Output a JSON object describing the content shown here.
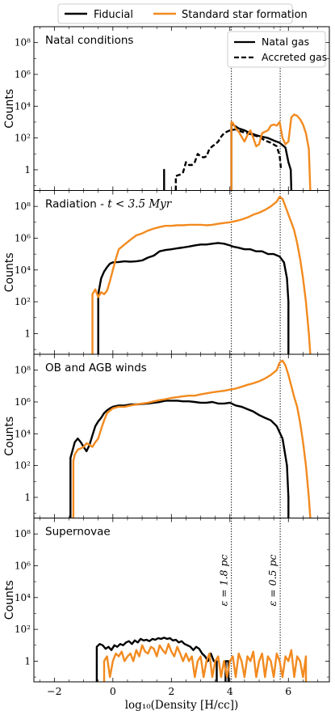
{
  "figure": {
    "legend_top": [
      {
        "label": "Fiducial",
        "color": "#000000",
        "style": "solid"
      },
      {
        "label": "Standard star formation",
        "color": "#f28a1f",
        "style": "solid"
      }
    ],
    "xlabel": "log$_{10}$(Density [H/cc])",
    "xlabel_display": "log₁₀(Density [H/cc])",
    "xticks": [
      "−2",
      "0",
      "2",
      "4",
      "6"
    ],
    "xlim": [
      -2.7,
      7.4
    ],
    "vlines": [
      {
        "x": 4.05,
        "label": "ε = 1.8 pc",
        "style": "dotted"
      },
      {
        "x": 5.72,
        "label": "ε = 0.5 pc",
        "style": "dotted"
      }
    ],
    "colors": {
      "fiducial": "#000000",
      "standard": "#f28a1f"
    }
  },
  "chart_data": [
    {
      "type": "line",
      "panel_title": "Natal conditions",
      "ylabel": "Counts",
      "yscale": "log",
      "yticks": [
        "1",
        "10²",
        "10⁴",
        "10⁶",
        "10⁸"
      ],
      "ylim": [
        0.05,
        1000000000.0
      ],
      "legend": [
        {
          "label": "Natal gas",
          "style": "solid"
        },
        {
          "label": "Accreted gas",
          "style": "dashed"
        }
      ],
      "series": [
        {
          "key": "fiducial",
          "style": "solid",
          "x": [
            1.75,
            1.75,
            1.75
          ],
          "y": [
            0.05,
            1,
            0.05
          ]
        },
        {
          "key": "fiducial",
          "style": "solid",
          "x": [
            4.05,
            4.05,
            4.3,
            4.5,
            4.7,
            4.9,
            5.1,
            5.3,
            5.5,
            5.7,
            5.9,
            6.0,
            6.08,
            6.1,
            6.1
          ],
          "y": [
            0.05,
            800,
            400,
            300,
            200,
            150,
            120,
            100,
            70,
            50,
            25,
            3,
            1,
            0.05,
            0.05
          ]
        },
        {
          "key": "fiducial",
          "style": "dashed",
          "x": [
            2.15,
            2.15,
            2.3,
            2.4,
            2.5,
            2.6,
            2.7,
            2.8,
            2.9,
            3.0,
            3.1,
            3.2,
            3.3,
            3.4,
            3.5,
            3.6,
            3.7,
            3.8,
            3.9,
            4.0,
            4.2,
            4.4,
            4.6,
            4.8,
            5.0,
            5.2,
            5.4,
            5.6,
            5.7,
            5.75
          ],
          "y": [
            0.05,
            0.4,
            0.5,
            0.7,
            3,
            2,
            2,
            3,
            10,
            7,
            6,
            7,
            20,
            30,
            40,
            60,
            120,
            200,
            250,
            300,
            350,
            250,
            200,
            150,
            120,
            70,
            50,
            30,
            8,
            1
          ]
        },
        {
          "key": "standard",
          "style": "solid",
          "x": [
            4.05,
            4.05,
            4.1,
            4.2,
            4.3,
            4.4,
            4.5,
            4.6,
            4.7,
            4.8,
            4.9,
            5.0,
            5.1,
            5.2,
            5.3,
            5.4,
            5.5,
            5.6,
            5.7,
            5.8,
            5.9,
            6.0,
            6.1,
            6.2,
            6.3,
            6.4,
            6.5,
            6.6,
            6.7,
            6.75,
            6.75
          ],
          "y": [
            0.05,
            1000,
            900,
            400,
            250,
            120,
            60,
            150,
            300,
            100,
            30,
            40,
            200,
            250,
            300,
            600,
            700,
            600,
            1000,
            100,
            40,
            60,
            2000,
            3000,
            2500,
            1500,
            700,
            200,
            20,
            0.05,
            0.05
          ]
        }
      ]
    },
    {
      "type": "line",
      "panel_title": "Radiation - ",
      "panel_title_math": "t < 3.5 Myr",
      "ylabel": "Counts",
      "yscale": "log",
      "yticks": [
        "1",
        "10²",
        "10⁴",
        "10⁶",
        "10⁸"
      ],
      "ylim": [
        0.05,
        1000000000.0
      ],
      "series": [
        {
          "key": "fiducial",
          "style": "solid",
          "x": [
            -0.5,
            -0.5,
            -0.4,
            -0.3,
            -0.2,
            -0.1,
            0.0,
            0.2,
            0.4,
            0.6,
            0.8,
            1.0,
            1.2,
            1.4,
            1.6,
            1.8,
            2.0,
            2.2,
            2.4,
            2.6,
            2.8,
            3.0,
            3.2,
            3.4,
            3.6,
            3.8,
            4.0,
            4.1,
            4.3,
            4.5,
            4.7,
            4.9,
            5.1,
            5.3,
            5.5,
            5.7,
            5.85,
            5.95,
            6.0,
            6.0
          ],
          "y": [
            0.05,
            300,
            3000,
            8000,
            15000,
            25000,
            30000,
            32000,
            35000,
            33000,
            35000,
            40000,
            60000,
            80000,
            150000,
            180000,
            200000,
            230000,
            260000,
            300000,
            350000,
            400000,
            400000,
            450000,
            500000,
            450000,
            350000,
            300000,
            250000,
            200000,
            200000,
            150000,
            150000,
            100000,
            100000,
            70000,
            30000,
            3000,
            100,
            0.05
          ]
        },
        {
          "key": "standard",
          "style": "solid",
          "x": [
            -0.7,
            -0.7,
            -0.6,
            -0.5,
            -0.4,
            -0.3,
            -0.2,
            -0.1,
            0.0,
            0.1,
            0.2,
            0.4,
            0.6,
            0.8,
            1.0,
            1.2,
            1.4,
            1.6,
            1.8,
            2.0,
            2.2,
            2.4,
            2.6,
            2.8,
            3.0,
            3.2,
            3.4,
            3.6,
            3.8,
            4.0,
            4.2,
            4.4,
            4.6,
            4.8,
            5.0,
            5.2,
            5.4,
            5.6,
            5.7,
            5.8,
            5.9,
            6.0,
            6.1,
            6.2,
            6.3,
            6.4,
            6.5,
            6.6,
            6.7,
            6.75,
            6.75
          ],
          "y": [
            0.05,
            300,
            600,
            200,
            400,
            300,
            500,
            2000,
            10000,
            50000,
            200000,
            400000,
            800000,
            1500000,
            2000000,
            3000000,
            4000000,
            5000000,
            6000000,
            6000000,
            6500000,
            6500000,
            7000000,
            7000000,
            7000000,
            6500000,
            7000000,
            8000000,
            9000000,
            10000000,
            12000000,
            15000000,
            20000000,
            30000000,
            40000000,
            60000000,
            100000000,
            200000000,
            400000000,
            300000000,
            100000000,
            30000000,
            10000000,
            3000000,
            500000,
            50000,
            3000,
            100,
            1,
            0.05,
            0.05
          ]
        }
      ]
    },
    {
      "type": "line",
      "panel_title": "OB and AGB winds",
      "ylabel": "Counts",
      "yscale": "log",
      "yticks": [
        "1",
        "10²",
        "10⁴",
        "10⁶",
        "10⁸"
      ],
      "ylim": [
        0.05,
        1000000000.0
      ],
      "series": [
        {
          "key": "fiducial",
          "style": "solid",
          "x": [
            -1.45,
            -1.45,
            -1.3,
            -1.2,
            -1.1,
            -1.0,
            -0.9,
            -0.8,
            -0.7,
            -0.6,
            -0.5,
            -0.4,
            -0.3,
            -0.2,
            -0.1,
            0.0,
            0.2,
            0.4,
            0.6,
            0.8,
            1.0,
            1.2,
            1.4,
            1.6,
            1.8,
            2.0,
            2.2,
            2.4,
            2.6,
            2.8,
            3.0,
            3.2,
            3.4,
            3.6,
            3.8,
            4.0,
            4.2,
            4.4,
            4.6,
            4.8,
            5.0,
            5.2,
            5.4,
            5.6,
            5.8,
            5.95,
            6.0,
            6.0
          ],
          "y": [
            0.05,
            300,
            3000,
            5000,
            3000,
            1500,
            800,
            2000,
            8000,
            30000,
            60000,
            100000,
            200000,
            300000,
            400000,
            500000,
            600000,
            600000,
            700000,
            700000,
            750000,
            800000,
            900000,
            1000000,
            1200000,
            1200000,
            1200000,
            1100000,
            1100000,
            1000000,
            900000,
            900000,
            1000000,
            800000,
            800000,
            900000,
            600000,
            500000,
            350000,
            250000,
            150000,
            100000,
            70000,
            30000,
            5000,
            100,
            1,
            0.05
          ]
        },
        {
          "key": "standard",
          "style": "solid",
          "x": [
            -1.35,
            -1.35,
            -1.3,
            -1.2,
            -1.1,
            -1.0,
            -0.9,
            -0.8,
            -0.7,
            -0.6,
            -0.5,
            -0.4,
            -0.3,
            -0.2,
            0.0,
            0.2,
            0.4,
            0.6,
            0.8,
            1.0,
            1.2,
            1.4,
            1.6,
            1.8,
            2.0,
            2.2,
            2.4,
            2.6,
            2.8,
            3.0,
            3.2,
            3.4,
            3.6,
            3.8,
            4.0,
            4.2,
            4.4,
            4.6,
            4.8,
            5.0,
            5.2,
            5.4,
            5.6,
            5.7,
            5.8,
            5.9,
            6.0,
            6.1,
            6.2,
            6.3,
            6.4,
            6.5,
            6.6,
            6.7,
            6.75,
            6.75
          ],
          "y": [
            0.05,
            200,
            500,
            1000,
            1200,
            1500,
            2500,
            2000,
            1500,
            3000,
            5000,
            20000,
            70000,
            200000,
            400000,
            500000,
            500000,
            600000,
            700000,
            800000,
            900000,
            1100000,
            1300000,
            1500000,
            1800000,
            2000000,
            2300000,
            2500000,
            2500000,
            3000000,
            3500000,
            4000000,
            4500000,
            5000000,
            6000000,
            7000000,
            9000000,
            12000000,
            15000000,
            20000000,
            30000000,
            50000000,
            100000000,
            300000000,
            400000000,
            200000000,
            50000000,
            10000000,
            2000000,
            500000,
            50000,
            3000,
            100,
            1,
            0.05,
            0.05
          ]
        }
      ]
    },
    {
      "type": "line",
      "panel_title": "Supernovae",
      "ylabel": "Counts",
      "yscale": "log",
      "yticks": [
        "1",
        "10²",
        "10⁴",
        "10⁶",
        "10⁸"
      ],
      "ylim": [
        0.05,
        1000000000.0
      ],
      "series": [
        {
          "key": "fiducial",
          "style": "solid",
          "x": [
            -0.55,
            -0.55,
            -0.45,
            -0.35,
            -0.25,
            -0.15,
            -0.05,
            0.05,
            0.15,
            0.25,
            0.35,
            0.45,
            0.55,
            0.65,
            0.75,
            0.85,
            0.95,
            1.05,
            1.15,
            1.25,
            1.35,
            1.45,
            1.55,
            1.65,
            1.75,
            1.85,
            1.95,
            2.05,
            2.15,
            2.25,
            2.35,
            2.45,
            2.55,
            2.65,
            2.75,
            2.85,
            2.95,
            3.05,
            3.15,
            3.25,
            3.35,
            3.45,
            3.55,
            3.55
          ],
          "y": [
            0.05,
            8,
            12,
            10,
            6,
            8,
            5,
            10,
            8,
            12,
            10,
            15,
            18,
            12,
            20,
            15,
            25,
            20,
            22,
            18,
            25,
            22,
            28,
            25,
            30,
            25,
            28,
            20,
            22,
            15,
            18,
            12,
            10,
            8,
            5,
            8,
            6,
            3,
            2,
            1,
            3,
            1,
            1,
            0.05
          ]
        },
        {
          "key": "fiducial",
          "style": "solid",
          "x": [
            3.85,
            3.85,
            3.95,
            3.95
          ],
          "y": [
            0.05,
            1,
            1,
            0.05
          ]
        },
        {
          "key": "standard",
          "style": "solid",
          "x": [
            -0.3,
            -0.3,
            -0.2,
            -0.1,
            0.0,
            0.1,
            0.2,
            0.3,
            0.4,
            0.5,
            0.6,
            0.7,
            0.8,
            0.9,
            1.0,
            1.1,
            1.2,
            1.3,
            1.4,
            1.5,
            1.6,
            1.7,
            1.8,
            1.9,
            2.0,
            2.1,
            2.2,
            2.3,
            2.4,
            2.5,
            2.6,
            2.7,
            2.8,
            2.9,
            3.0,
            3.1,
            3.2,
            3.3,
            3.4,
            3.5,
            3.6,
            3.7,
            3.8,
            3.9,
            4.0,
            4.1,
            4.2,
            4.3,
            4.4,
            4.5,
            4.6,
            4.7,
            4.8,
            4.9,
            5.0,
            5.1,
            5.2,
            5.3,
            5.4,
            5.5,
            5.6,
            5.7,
            5.8,
            5.9,
            6.0,
            6.1,
            6.2,
            6.3,
            6.4,
            6.5,
            6.6,
            6.6
          ],
          "y": [
            0.05,
            1,
            2,
            0.1,
            1,
            3,
            2,
            4,
            1,
            2,
            3,
            1,
            5,
            2,
            10,
            4,
            3,
            8,
            6,
            2,
            10,
            5,
            3,
            12,
            4,
            2,
            8,
            3,
            1,
            3,
            1,
            2,
            0.1,
            1,
            2,
            0.1,
            1,
            3,
            0.1,
            1,
            2,
            0.1,
            1,
            0.1,
            1,
            2,
            0.1,
            3,
            1,
            0.1,
            2,
            1,
            4,
            0.1,
            1,
            3,
            0.1,
            2,
            1,
            0.1,
            3,
            1,
            0.1,
            2,
            1,
            5,
            0.1,
            2,
            1,
            0.1,
            2,
            0.05
          ]
        }
      ]
    }
  ]
}
